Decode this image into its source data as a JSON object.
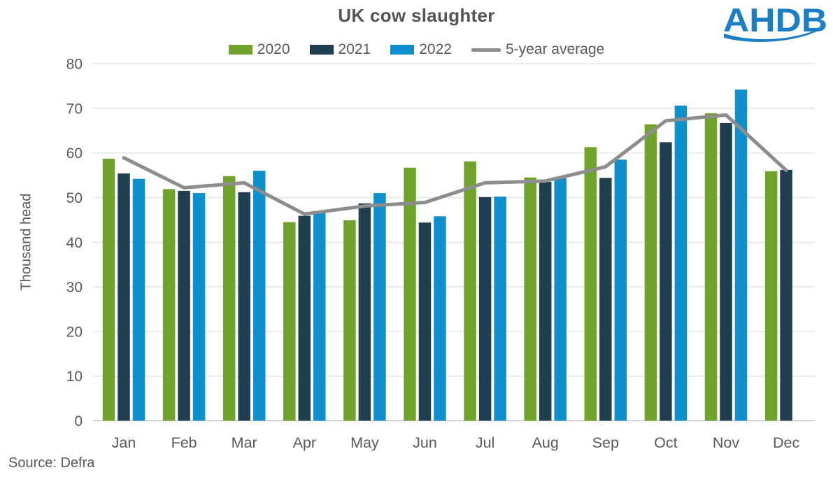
{
  "header": {
    "logo_text": "AHDB",
    "logo_color": "#1c7fc3"
  },
  "source_note": "Source: Defra",
  "chart_data": {
    "type": "bar",
    "title": "UK cow slaughter",
    "xlabel": "",
    "ylabel": "Thousand head",
    "ylim": [
      0,
      80
    ],
    "yticks": [
      0,
      10,
      20,
      30,
      40,
      50,
      60,
      70,
      80
    ],
    "grid": "horizontal",
    "legend_position": "top",
    "categories": [
      "Jan",
      "Feb",
      "Mar",
      "Apr",
      "May",
      "Jun",
      "Jul",
      "Aug",
      "Sep",
      "Oct",
      "Nov",
      "Dec"
    ],
    "series": [
      {
        "name": "2020",
        "color": "#6fa32c",
        "values": [
          58.7,
          51.9,
          54.8,
          44.5,
          44.9,
          56.7,
          58.1,
          54.5,
          61.3,
          66.4,
          68.9,
          55.9
        ]
      },
      {
        "name": "2021",
        "color": "#1f3f50",
        "values": [
          55.4,
          51.5,
          51.2,
          45.9,
          48.7,
          44.4,
          50.1,
          53.5,
          54.4,
          62.4,
          66.7,
          56.2
        ]
      },
      {
        "name": "2022",
        "color": "#0f90ce",
        "values": [
          54.2,
          51.0,
          56.0,
          47.0,
          51.0,
          45.8,
          50.2,
          54.3,
          58.5,
          70.6,
          74.2,
          null
        ]
      }
    ],
    "average": {
      "name": "5-year average",
      "type": "line",
      "color": "#8d8d8d",
      "values": [
        58.9,
        52.2,
        53.3,
        46.3,
        48.1,
        48.9,
        53.3,
        53.7,
        56.9,
        67.2,
        68.5,
        56.1
      ]
    },
    "text_color": "#595959",
    "gridline_color": "#e5e5e5",
    "baseline_color": "#c7c7c7"
  }
}
